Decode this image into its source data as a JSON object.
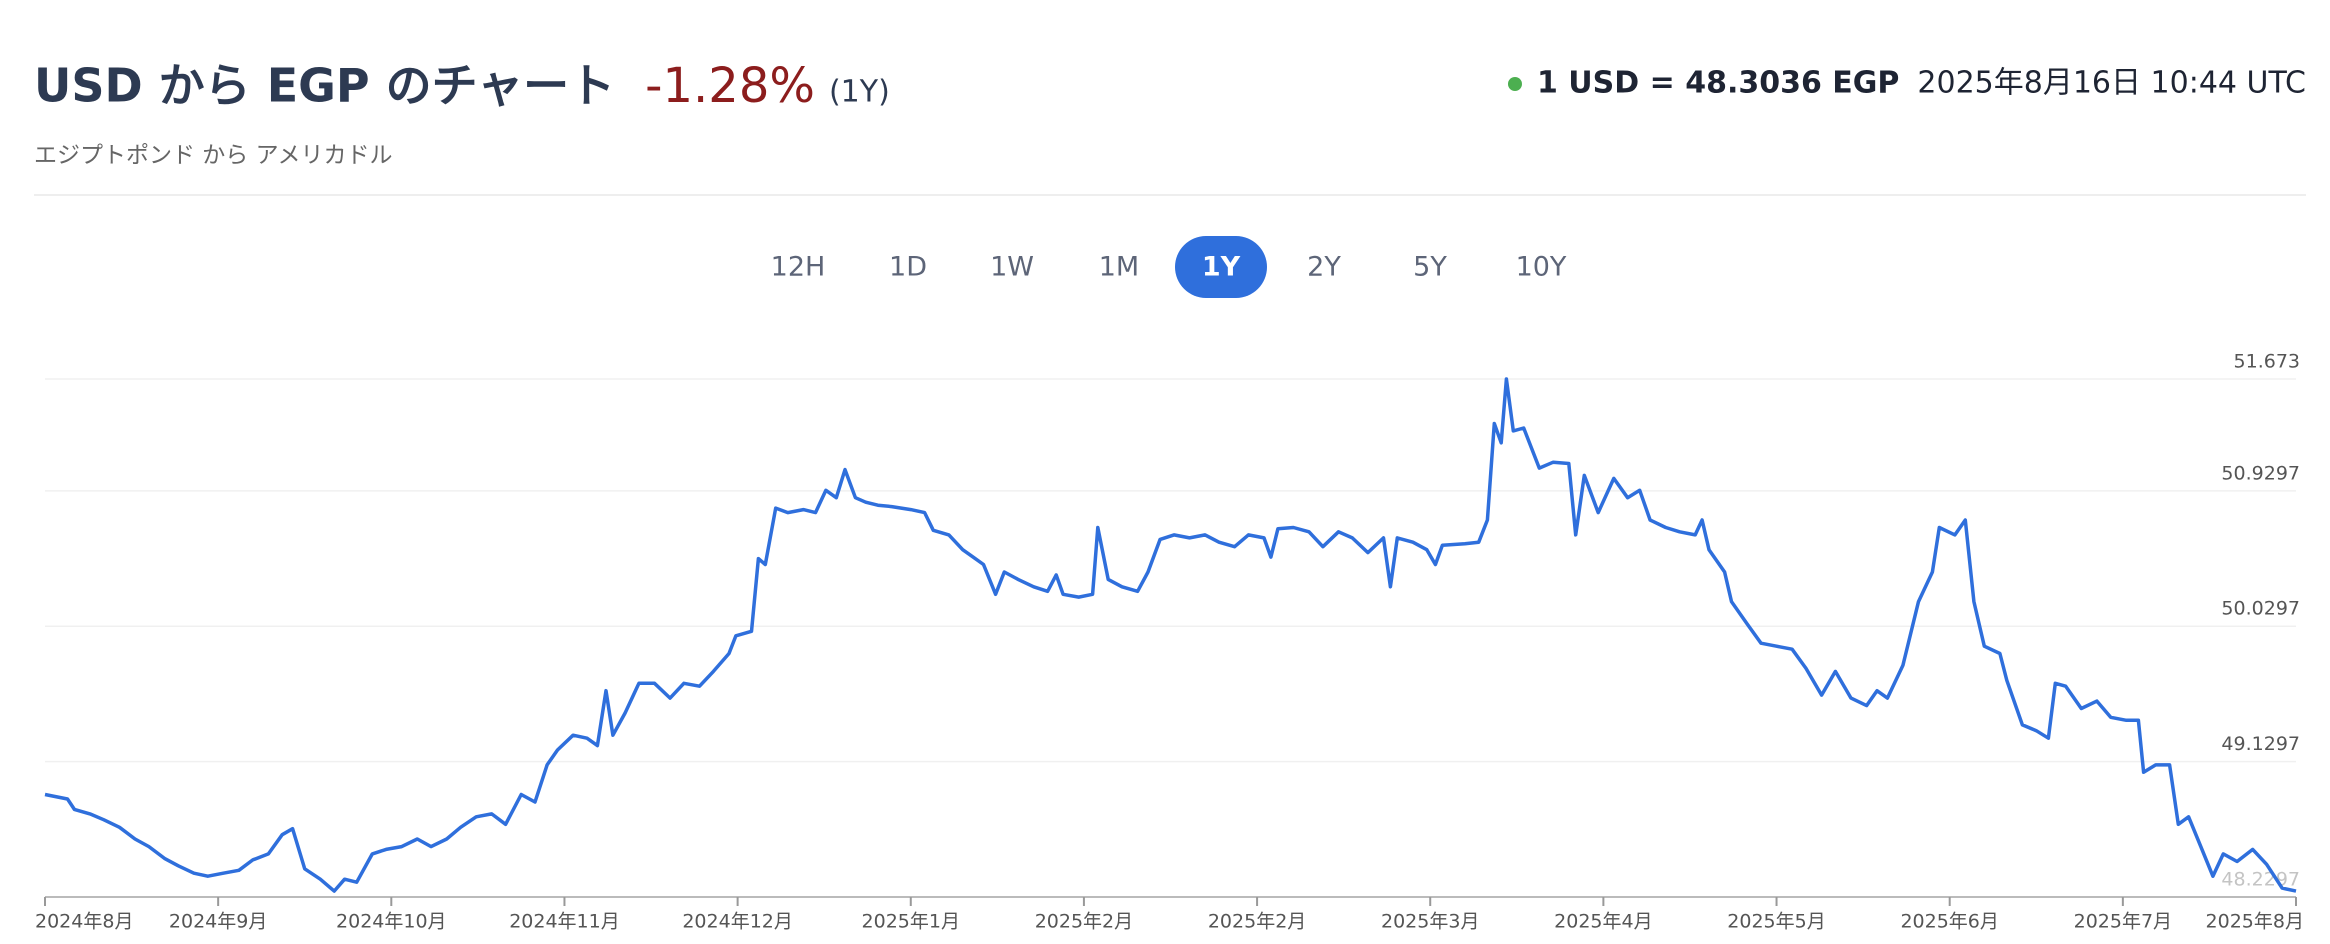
{
  "chart_data": {
    "type": "line",
    "title": "USD から EGP のチャート",
    "change": "-1.28%",
    "period": "(1Y)",
    "subtitle": "エジプトポンド から アメリカドル",
    "rate": "1 USD = 48.3036 EGP",
    "timestamp": "2025年8月16日 10:44 UTC",
    "range_buttons": [
      "12H",
      "1D",
      "1W",
      "1M",
      "1Y",
      "2Y",
      "5Y",
      "10Y"
    ],
    "active_button": 4,
    "color": "#2f6fdc",
    "grid": true,
    "xlim": [
      0,
      13
    ],
    "xticks": [
      {
        "value": 0,
        "label": "2024年8月"
      },
      {
        "value": 1,
        "label": "2024年9月"
      },
      {
        "value": 2,
        "label": "2024年10月"
      },
      {
        "value": 3,
        "label": "2024年11月"
      },
      {
        "value": 4,
        "label": "2024年12月"
      },
      {
        "value": 5,
        "label": "2025年1月"
      },
      {
        "value": 6,
        "label": "2025年2月"
      },
      {
        "value": 7,
        "label": "2025年2月"
      },
      {
        "value": 8,
        "label": "2025年3月"
      },
      {
        "value": 9,
        "label": "2025年4月"
      },
      {
        "value": 10,
        "label": "2025年5月"
      },
      {
        "value": 11,
        "label": "2025年6月"
      },
      {
        "value": 12,
        "label": "2025年7月"
      },
      {
        "value": 13,
        "label": "2025年8月"
      }
    ],
    "ylim": [
      48.2297,
      51.673
    ],
    "yticks": [
      48.2297,
      49.1297,
      50.0297,
      50.9297,
      51.673
    ],
    "x": [
      0,
      0.13,
      0.17,
      0.26,
      0.34,
      0.43,
      0.52,
      0.6,
      0.69,
      0.77,
      0.86,
      0.94,
      1.03,
      1.12,
      1.2,
      1.29,
      1.37,
      1.43,
      1.5,
      1.59,
      1.67,
      1.73,
      1.8,
      1.89,
      1.97,
      2.06,
      2.15,
      2.23,
      2.32,
      2.4,
      2.49,
      2.58,
      2.66,
      2.75,
      2.83,
      2.9,
      2.96,
      3.05,
      3.13,
      3.19,
      3.24,
      3.28,
      3.35,
      3.43,
      3.52,
      3.61,
      3.69,
      3.78,
      3.86,
      3.95,
      3.99,
      4.08,
      4.12,
      4.16,
      4.22,
      4.29,
      4.38,
      4.45,
      4.51,
      4.57,
      4.62,
      4.68,
      4.74,
      4.81,
      4.89,
      5.0,
      5.08,
      5.13,
      5.22,
      5.3,
      5.36,
      5.42,
      5.49,
      5.54,
      5.62,
      5.71,
      5.79,
      5.84,
      5.88,
      5.97,
      6.05,
      6.08,
      6.14,
      6.22,
      6.31,
      6.37,
      6.44,
      6.52,
      6.61,
      6.7,
      6.78,
      6.87,
      6.95,
      7.04,
      7.08,
      7.12,
      7.21,
      7.3,
      7.38,
      7.47,
      7.55,
      7.64,
      7.73,
      7.77,
      7.81,
      7.9,
      7.98,
      8.03,
      8.07,
      8.2,
      8.28,
      8.33,
      8.37,
      8.41,
      8.44,
      8.48,
      8.54,
      8.63,
      8.71,
      8.8,
      8.84,
      8.89,
      8.97,
      9.06,
      9.14,
      9.21,
      9.27,
      9.36,
      9.44,
      9.53,
      9.57,
      9.61,
      9.7,
      9.74,
      9.83,
      9.91,
      10.0,
      10.09,
      10.17,
      10.26,
      10.34,
      10.43,
      10.52,
      10.58,
      10.64,
      10.73,
      10.82,
      10.9,
      10.94,
      11.03,
      11.09,
      11.14,
      11.2,
      11.29,
      11.33,
      11.42,
      11.5,
      11.57,
      11.61,
      11.67,
      11.76,
      11.85,
      11.93,
      12.02,
      12.09,
      12.12,
      12.19,
      12.27,
      12.32,
      12.38,
      12.45,
      12.52,
      12.58,
      12.66,
      12.75,
      12.83,
      12.92,
      13.0
    ],
    "values": [
      48.911,
      48.881,
      48.812,
      48.782,
      48.743,
      48.693,
      48.615,
      48.565,
      48.486,
      48.437,
      48.388,
      48.368,
      48.388,
      48.407,
      48.476,
      48.516,
      48.644,
      48.684,
      48.417,
      48.348,
      48.269,
      48.348,
      48.328,
      48.516,
      48.546,
      48.565,
      48.615,
      48.565,
      48.615,
      48.693,
      48.763,
      48.782,
      48.713,
      48.911,
      48.861,
      49.108,
      49.207,
      49.305,
      49.285,
      49.236,
      49.601,
      49.305,
      49.453,
      49.65,
      49.65,
      49.552,
      49.65,
      49.631,
      49.729,
      49.848,
      49.966,
      49.996,
      50.479,
      50.44,
      50.815,
      50.785,
      50.805,
      50.785,
      50.933,
      50.884,
      51.071,
      50.884,
      50.854,
      50.834,
      50.825,
      50.805,
      50.785,
      50.667,
      50.637,
      50.538,
      50.489,
      50.44,
      50.242,
      50.39,
      50.341,
      50.292,
      50.262,
      50.371,
      50.242,
      50.223,
      50.242,
      50.686,
      50.341,
      50.292,
      50.262,
      50.39,
      50.607,
      50.637,
      50.617,
      50.637,
      50.588,
      50.558,
      50.637,
      50.617,
      50.489,
      50.677,
      50.686,
      50.657,
      50.558,
      50.657,
      50.617,
      50.519,
      50.617,
      50.292,
      50.617,
      50.588,
      50.538,
      50.44,
      50.568,
      50.578,
      50.588,
      50.736,
      51.377,
      51.249,
      51.673,
      51.328,
      51.347,
      51.081,
      51.12,
      51.111,
      50.637,
      51.032,
      50.785,
      51.012,
      50.884,
      50.933,
      50.736,
      50.686,
      50.657,
      50.637,
      50.736,
      50.538,
      50.39,
      50.193,
      50.045,
      49.917,
      49.897,
      49.877,
      49.749,
      49.572,
      49.729,
      49.552,
      49.502,
      49.601,
      49.552,
      49.769,
      50.193,
      50.39,
      50.686,
      50.637,
      50.736,
      50.193,
      49.897,
      49.848,
      49.67,
      49.374,
      49.335,
      49.285,
      49.65,
      49.631,
      49.483,
      49.532,
      49.424,
      49.404,
      49.404,
      49.059,
      49.108,
      49.108,
      48.713,
      48.763,
      48.565,
      48.368,
      48.516,
      48.466,
      48.546,
      48.447,
      48.289,
      48.269
    ]
  }
}
